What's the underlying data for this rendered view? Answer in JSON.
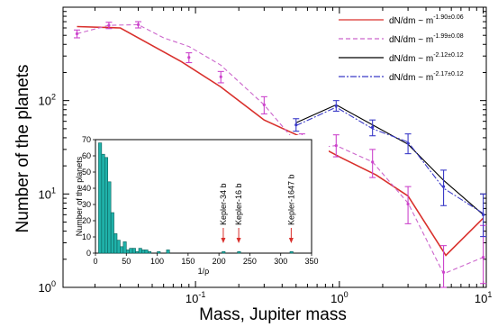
{
  "chart_data": [
    {
      "type": "line",
      "xlabel": "Mass, Jupiter mass",
      "ylabel": "Number of the planets",
      "xscale": "log",
      "yscale": "log",
      "xlim": [
        0.012,
        10.5
      ],
      "ylim": [
        1,
        1000
      ],
      "x_ticks": [
        {
          "value": 0.1,
          "base": "10",
          "exp": "-1"
        },
        {
          "value": 1,
          "base": "10",
          "exp": "0"
        },
        {
          "value": 10,
          "base": "10",
          "exp": "1"
        }
      ],
      "y_ticks": [
        {
          "value": 1,
          "base": "10",
          "exp": "0"
        },
        {
          "value": 10,
          "base": "10",
          "exp": "1"
        },
        {
          "value": 100,
          "base": "10",
          "exp": "2"
        }
      ],
      "legend_position": "top-right",
      "legend": [
        {
          "text": "dN/dm ~ m",
          "exp": "-1.90±0.06",
          "color": "#d9302c",
          "style": "solid"
        },
        {
          "text": "dN/dm ~ m",
          "exp": "-1.99±0.08",
          "color": "#cc66cc",
          "style": "dashed"
        },
        {
          "text": "dN/dm ~ m",
          "exp": "-2.12±0.12",
          "color": "#000000",
          "style": "solid"
        },
        {
          "text": "dN/dm ~ m",
          "exp": "-2.17±0.12",
          "color": "#3a3ac8",
          "style": "dashdot"
        }
      ],
      "series": [
        {
          "color": "#d9302c",
          "style": "solid",
          "x": [
            0.015,
            0.03,
            0.08,
            0.15,
            0.3,
            0.6,
            1.0,
            1.8,
            3.0,
            5.5,
            10.0
          ],
          "y": [
            620,
            600,
            260,
            140,
            62,
            38,
            25,
            16,
            9.5,
            2.2,
            5.5
          ]
        },
        {
          "color": "#cc66cc",
          "style": "dashed",
          "x": [
            0.015,
            0.025,
            0.04,
            0.06,
            0.09,
            0.15,
            0.3,
            0.55,
            0.95,
            1.7,
            3.0,
            5.3,
            10.0
          ],
          "y": [
            520,
            640,
            650,
            470,
            380,
            240,
            90,
            30,
            33,
            22,
            8,
            1.4,
            2.1
          ]
        },
        {
          "color": "#000000",
          "style": "solid",
          "x": [
            0.5,
            0.95,
            1.7,
            3.0,
            5.3,
            10.0
          ],
          "y": [
            58,
            90,
            55,
            34,
            14,
            6
          ]
        },
        {
          "color": "#3a3ac8",
          "style": "dashdot",
          "x": [
            0.5,
            0.95,
            1.7,
            3.0,
            5.3,
            10.0
          ],
          "y": [
            54,
            85,
            50,
            36,
            11.5,
            6.2
          ]
        }
      ],
      "markers": [
        {
          "color": "#cc44cc",
          "points": [
            {
              "x": 0.015,
              "y": 520,
              "lo": 470,
              "hi": 570
            },
            {
              "x": 0.025,
              "y": 640,
              "lo": 590,
              "hi": 690
            },
            {
              "x": 0.04,
              "y": 650,
              "lo": 600,
              "hi": 700
            },
            {
              "x": 0.09,
              "y": 290,
              "lo": 255,
              "hi": 325
            },
            {
              "x": 0.15,
              "y": 180,
              "lo": 155,
              "hi": 205
            },
            {
              "x": 0.3,
              "y": 90,
              "lo": 72,
              "hi": 110
            },
            {
              "x": 0.55,
              "y": 34,
              "lo": 24,
              "hi": 44
            },
            {
              "x": 0.95,
              "y": 33,
              "lo": 25,
              "hi": 43
            },
            {
              "x": 1.7,
              "y": 22,
              "lo": 15,
              "hi": 30
            },
            {
              "x": 3.0,
              "y": 7.8,
              "lo": 4.8,
              "hi": 12
            },
            {
              "x": 5.3,
              "y": 1.45,
              "lo": 1.0,
              "hi": 2.8
            },
            {
              "x": 10.0,
              "y": 2.1,
              "lo": 1.1,
              "hi": 4.6
            }
          ]
        },
        {
          "color": "#3a3ac8",
          "points": [
            {
              "x": 0.5,
              "y": 55,
              "lo": 47,
              "hi": 64
            },
            {
              "x": 0.95,
              "y": 88,
              "lo": 77,
              "hi": 100
            },
            {
              "x": 1.7,
              "y": 52,
              "lo": 42,
              "hi": 62
            },
            {
              "x": 3.0,
              "y": 35,
              "lo": 27,
              "hi": 44
            },
            {
              "x": 5.3,
              "y": 12,
              "lo": 7.5,
              "hi": 18
            },
            {
              "x": 10.0,
              "y": 6,
              "lo": 3.5,
              "hi": 10
            }
          ]
        }
      ]
    },
    {
      "type": "bar",
      "xlabel": "1/ρ",
      "ylabel": "Number of the planets",
      "xlim": [
        0,
        350
      ],
      "ylim": [
        0,
        70
      ],
      "x_ticks": [
        0,
        50,
        100,
        150,
        200,
        250,
        300,
        350
      ],
      "y_ticks": [
        0,
        10,
        20,
        30,
        40,
        50,
        60,
        70
      ],
      "bar_color": "#20b2aa",
      "bin_width": 5,
      "bins": [
        {
          "x0": 5,
          "value": 68
        },
        {
          "x0": 10,
          "value": 61
        },
        {
          "x0": 15,
          "value": 59
        },
        {
          "x0": 20,
          "value": 44
        },
        {
          "x0": 25,
          "value": 25
        },
        {
          "x0": 30,
          "value": 12
        },
        {
          "x0": 35,
          "value": 8
        },
        {
          "x0": 40,
          "value": 4
        },
        {
          "x0": 45,
          "value": 7
        },
        {
          "x0": 50,
          "value": 2
        },
        {
          "x0": 55,
          "value": 3
        },
        {
          "x0": 60,
          "value": 3
        },
        {
          "x0": 65,
          "value": 1
        },
        {
          "x0": 70,
          "value": 3
        },
        {
          "x0": 75,
          "value": 2
        },
        {
          "x0": 80,
          "value": 2
        },
        {
          "x0": 85,
          "value": 1
        },
        {
          "x0": 100,
          "value": 1
        },
        {
          "x0": 115,
          "value": 2
        },
        {
          "x0": 205,
          "value": 1
        },
        {
          "x0": 230,
          "value": 1
        },
        {
          "x0": 315,
          "value": 1
        }
      ],
      "annotations": [
        {
          "text": "Kepler-34 b",
          "x": 207
        },
        {
          "text": "Kepler-16 b",
          "x": 232
        },
        {
          "text": "Kepler-1647 b",
          "x": 317
        }
      ]
    }
  ]
}
